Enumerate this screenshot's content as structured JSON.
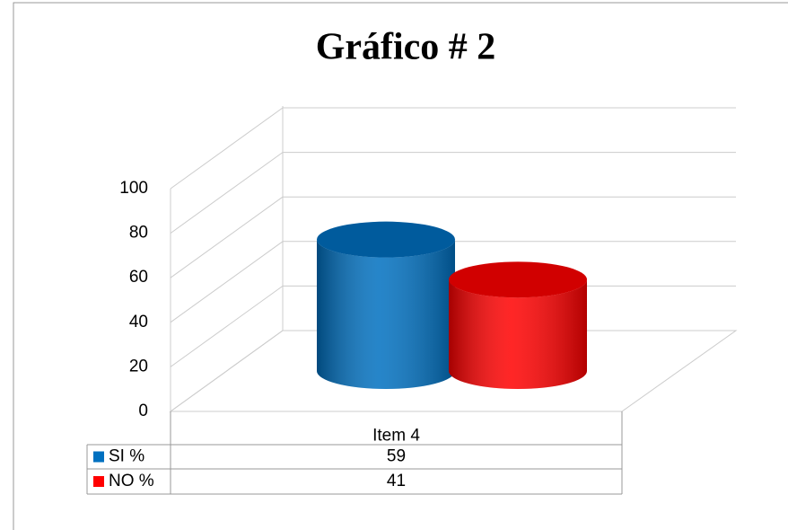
{
  "chart_data": {
    "type": "bar3d",
    "title": "Gráfico # 2",
    "categories": [
      "Item 4"
    ],
    "series": [
      {
        "name": "SI %",
        "color": "#0070c0",
        "values": [
          59
        ]
      },
      {
        "name": "NO %",
        "color": "#ff0000",
        "values": [
          41
        ]
      }
    ],
    "ylim": [
      0,
      100
    ],
    "yticks": [
      0,
      20,
      40,
      60,
      80,
      100
    ],
    "grid": true
  }
}
